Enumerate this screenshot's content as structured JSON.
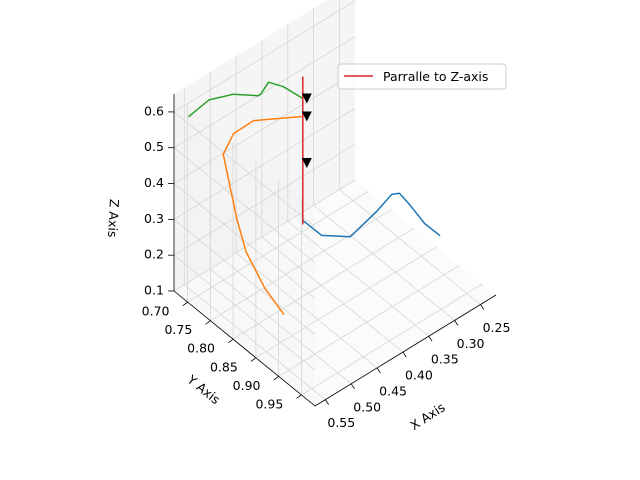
{
  "chart_data": {
    "type": "line",
    "projection": "3d",
    "title": "",
    "xlabel": "X Axis",
    "ylabel": "Y Axis",
    "zlabel": "Z Axis",
    "xlim": [
      0.22,
      0.57
    ],
    "ylim": [
      0.67,
      0.98
    ],
    "zlim": [
      0.1,
      0.65
    ],
    "xticks": [
      "0.25",
      "0.30",
      "0.35",
      "0.40",
      "0.45",
      "0.50",
      "0.55"
    ],
    "yticks": [
      "0.70",
      "0.75",
      "0.80",
      "0.85",
      "0.90",
      "0.95"
    ],
    "zticks": [
      "0.1",
      "0.2",
      "0.3",
      "0.4",
      "0.5",
      "0.6"
    ],
    "grid": true,
    "legend": {
      "position": "top-right",
      "entries": [
        "Parralle to Z-axis"
      ]
    },
    "series": [
      {
        "color": "#1f77b4",
        "points": [
          [
            0.4,
            0.76,
            0.24
          ],
          [
            0.39,
            0.79,
            0.22
          ],
          [
            0.37,
            0.83,
            0.24
          ],
          [
            0.345,
            0.86,
            0.32
          ],
          [
            0.325,
            0.87,
            0.36
          ],
          [
            0.31,
            0.87,
            0.35
          ],
          [
            0.29,
            0.87,
            0.3
          ],
          [
            0.27,
            0.88,
            0.24
          ],
          [
            0.25,
            0.89,
            0.2
          ]
        ]
      },
      {
        "color": "#ff7f0e",
        "points": [
          [
            0.4,
            0.76,
            0.53
          ],
          [
            0.43,
            0.74,
            0.53
          ],
          [
            0.46,
            0.72,
            0.53
          ],
          [
            0.49,
            0.71,
            0.51
          ],
          [
            0.51,
            0.71,
            0.47
          ],
          [
            0.51,
            0.72,
            0.42
          ],
          [
            0.51,
            0.74,
            0.32
          ],
          [
            0.51,
            0.76,
            0.25
          ],
          [
            0.5,
            0.79,
            0.17
          ],
          [
            0.49,
            0.82,
            0.12
          ]
        ]
      },
      {
        "color": "#2ca02c",
        "points": [
          [
            0.4,
            0.76,
            0.58
          ],
          [
            0.42,
            0.74,
            0.61
          ],
          [
            0.44,
            0.73,
            0.63
          ],
          [
            0.455,
            0.73,
            0.61
          ],
          [
            0.46,
            0.73,
            0.61
          ],
          [
            0.49,
            0.71,
            0.62
          ],
          [
            0.52,
            0.69,
            0.61
          ],
          [
            0.55,
            0.68,
            0.58
          ]
        ]
      },
      {
        "color": "#d62728",
        "name": "Parralle to Z-axis",
        "points": [
          [
            0.4,
            0.76,
            0.23
          ],
          [
            0.4,
            0.76,
            0.64
          ]
        ]
      }
    ],
    "markers": [
      {
        "color": "#000000",
        "shape": "triangle-down",
        "point": [
          0.4,
          0.76,
          0.58
        ]
      },
      {
        "color": "#000000",
        "shape": "triangle-down",
        "point": [
          0.4,
          0.76,
          0.53
        ]
      },
      {
        "color": "#000000",
        "shape": "triangle-down",
        "point": [
          0.4,
          0.76,
          0.4
        ]
      }
    ]
  }
}
